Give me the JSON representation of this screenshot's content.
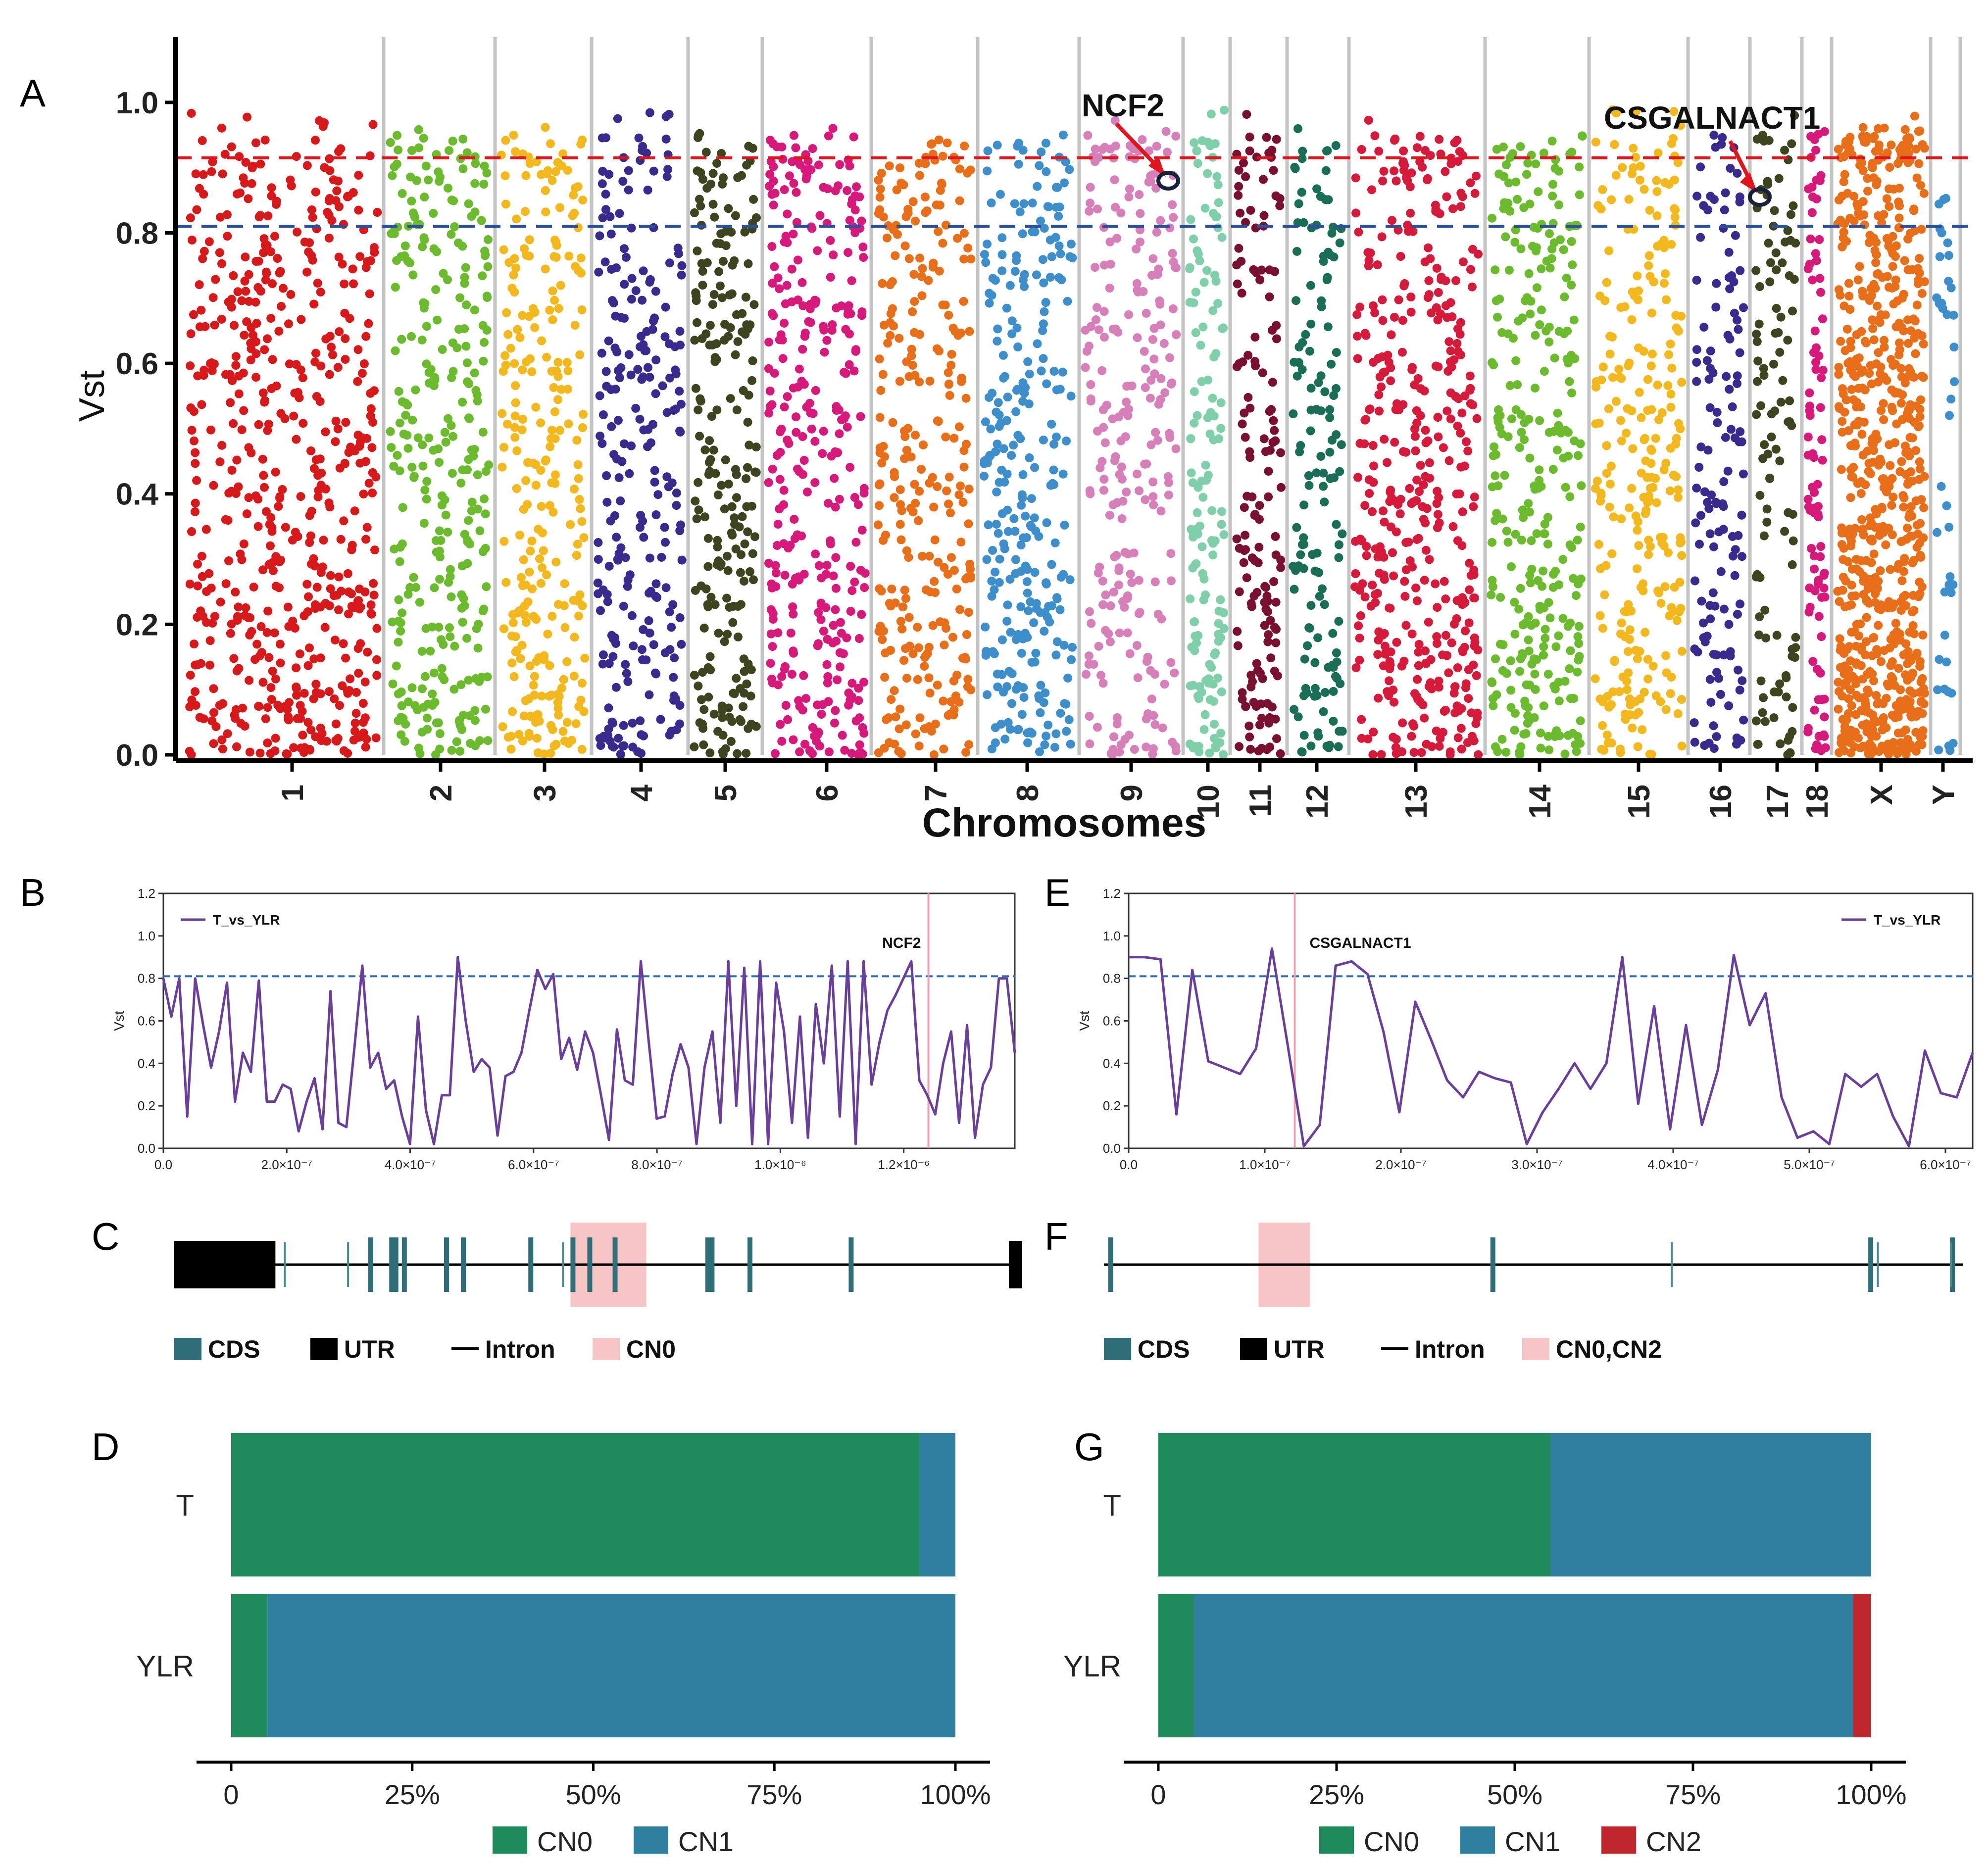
{
  "chart_data": [
    {
      "panel": "A",
      "type": "scatter",
      "title": "",
      "xlabel": "Chromosomes",
      "ylabel": "Vst",
      "ylim": [
        0,
        1.1
      ],
      "yticks": [
        "0.0",
        "0.2",
        "0.4",
        "0.6",
        "0.8",
        "1.0"
      ],
      "threshold_lines": [
        {
          "name": "red-threshold",
          "value": 0.915,
          "color": "#e0141e"
        },
        {
          "name": "blue-threshold",
          "value": 0.81,
          "color": "#2c4f9e"
        }
      ],
      "chromosomes": [
        {
          "label": "1",
          "color": "#d7191c",
          "n": 560
        },
        {
          "label": "2",
          "color": "#6cbb2e",
          "n": 300
        },
        {
          "label": "3",
          "color": "#f2b81d",
          "n": 260
        },
        {
          "label": "4",
          "color": "#3b2a8e",
          "n": 240
        },
        {
          "label": "5",
          "color": "#3f4420",
          "n": 220
        },
        {
          "label": "6",
          "color": "#d6197a",
          "n": 320
        },
        {
          "label": "7",
          "color": "#e86e19",
          "n": 280
        },
        {
          "label": "8",
          "color": "#3d8ecb",
          "n": 280
        },
        {
          "label": "9",
          "color": "#d77fb8",
          "n": 240
        },
        {
          "label": "10",
          "color": "#7fcfaa",
          "n": 140
        },
        {
          "label": "11",
          "color": "#7a1030",
          "n": 150
        },
        {
          "label": "12",
          "color": "#1a6e55",
          "n": 140
        },
        {
          "label": "13",
          "color": "#d61a3c",
          "n": 420
        },
        {
          "label": "14",
          "color": "#6cbb2e",
          "n": 300
        },
        {
          "label": "15",
          "color": "#f2b81d",
          "n": 260
        },
        {
          "label": "16",
          "color": "#3b2a8e",
          "n": 130
        },
        {
          "label": "17",
          "color": "#3f4420",
          "n": 110
        },
        {
          "label": "18",
          "color": "#d6197a",
          "n": 90
        },
        {
          "label": "X",
          "color": "#e86e19",
          "n": 700
        },
        {
          "label": "Y",
          "color": "#3d8ecb",
          "n": 40
        }
      ],
      "annotations": [
        {
          "label": "NCF2",
          "chromosome": "9",
          "vst": 0.88
        },
        {
          "label": "CSGALNACT1",
          "chromosome": "17",
          "vst": 0.855
        }
      ]
    },
    {
      "panel": "B",
      "type": "line",
      "legend": "T_vs_YLR",
      "ylabel": "Vst",
      "xlim": [
        0,
        1.38e-06
      ],
      "ylim": [
        0,
        1.2
      ],
      "yticks": [
        "0.0",
        "0.2",
        "0.4",
        "0.6",
        "0.8",
        "1.0",
        "1.2"
      ],
      "xticks": [
        "0.0",
        "2.0×10⁻⁷",
        "4.0×10⁻⁷",
        "6.0×10⁻⁷",
        "8.0×10⁻⁷",
        "1.0×10⁻⁶",
        "1.2×10⁻⁶"
      ],
      "xtick_values": [
        0,
        2e-07,
        4e-07,
        6e-07,
        8e-07,
        1e-06,
        1.2e-06
      ],
      "threshold": 0.81,
      "marker": {
        "label": "NCF2",
        "x": 1.24e-06
      },
      "y": [
        0.8,
        0.62,
        0.8,
        0.15,
        0.8,
        0.58,
        0.38,
        0.55,
        0.78,
        0.22,
        0.45,
        0.36,
        0.79,
        0.22,
        0.22,
        0.3,
        0.28,
        0.08,
        0.22,
        0.33,
        0.09,
        0.74,
        0.12,
        0.1,
        0.47,
        0.86,
        0.38,
        0.45,
        0.28,
        0.32,
        0.15,
        0.02,
        0.62,
        0.18,
        0.02,
        0.25,
        0.25,
        0.9,
        0.6,
        0.36,
        0.42,
        0.38,
        0.06,
        0.34,
        0.36,
        0.45,
        0.65,
        0.84,
        0.75,
        0.82,
        0.42,
        0.52,
        0.37,
        0.55,
        0.45,
        0.25,
        0.04,
        0.56,
        0.32,
        0.3,
        0.88,
        0.5,
        0.14,
        0.15,
        0.35,
        0.49,
        0.38,
        0.02,
        0.38,
        0.55,
        0.12,
        0.88,
        0.2,
        0.85,
        0.02,
        0.88,
        0.02,
        0.78,
        0.55,
        0.12,
        0.62,
        0.05,
        0.68,
        0.4,
        0.86,
        0.15,
        0.88,
        0.02,
        0.88,
        0.3,
        0.5,
        0.65,
        0.72,
        0.8,
        0.88,
        0.32,
        0.25,
        0.16,
        0.4,
        0.55,
        0.12,
        0.58,
        0.05,
        0.3,
        0.38,
        0.8,
        0.8,
        0.45
      ],
      "xlabel": ""
    },
    {
      "panel": "E",
      "type": "line",
      "legend": "T_vs_YLR",
      "ylabel": "Vst",
      "xlim": [
        0,
        6.2e-07
      ],
      "ylim": [
        0,
        1.2
      ],
      "yticks": [
        "0.0",
        "0.2",
        "0.4",
        "0.6",
        "0.8",
        "1.0",
        "1.2"
      ],
      "xticks": [
        "0.0",
        "1.0×10⁻⁷",
        "2.0×10⁻⁷",
        "3.0×10⁻⁷",
        "4.0×10⁻⁷",
        "5.0×10⁻⁷",
        "6.0×10⁻⁷"
      ],
      "xtick_values": [
        0,
        1e-07,
        2e-07,
        3e-07,
        4e-07,
        5e-07,
        6e-07
      ],
      "threshold": 0.81,
      "marker": {
        "label": "CSGALNACT1",
        "x": 1.22e-07
      },
      "y": [
        0.9,
        0.9,
        0.89,
        0.16,
        0.84,
        0.41,
        0.38,
        0.35,
        0.47,
        0.94,
        0.48,
        0.01,
        0.11,
        0.86,
        0.88,
        0.82,
        0.55,
        0.17,
        0.69,
        0.51,
        0.32,
        0.24,
        0.36,
        0.33,
        0.31,
        0.02,
        0.17,
        0.28,
        0.4,
        0.28,
        0.4,
        0.9,
        0.21,
        0.67,
        0.09,
        0.58,
        0.11,
        0.37,
        0.91,
        0.58,
        0.73,
        0.24,
        0.05,
        0.08,
        0.02,
        0.35,
        0.29,
        0.35,
        0.15,
        0.01,
        0.46,
        0.26,
        0.24,
        0.45
      ],
      "xlabel": ""
    },
    {
      "panel": "C",
      "type": "diagram",
      "legend": [
        "CDS",
        "UTR",
        "Intron",
        "CN0"
      ],
      "exons": [
        0.23,
        0.255,
        0.26,
        0.27,
        0.32,
        0.34,
        0.42,
        0.47,
        0.49,
        0.52,
        0.63,
        0.635,
        0.68,
        0.8
      ],
      "thin_exons": [
        0.13,
        0.205,
        0.46
      ],
      "utr_left": [
        0,
        0.12
      ],
      "utr_right": [
        0.99,
        1.0
      ],
      "cnv_region": [
        0.47,
        0.56
      ]
    },
    {
      "panel": "F",
      "type": "diagram",
      "legend": [
        "CDS",
        "UTR",
        "Intron",
        "CN0,CN2"
      ],
      "exons": [
        0.005,
        0.45,
        0.89,
        0.985
      ],
      "thin_exons": [
        0.66,
        0.9,
        0.985
      ],
      "cnv_region": [
        0.18,
        0.24
      ]
    },
    {
      "panel": "D",
      "type": "bar",
      "orientation": "horizontal-stacked",
      "categories": [
        "T",
        "YLR"
      ],
      "series": [
        {
          "name": "CN0",
          "color": "#1f8a5b",
          "values": [
            95,
            5
          ]
        },
        {
          "name": "CN1",
          "color": "#2e7fa0",
          "values": [
            5,
            95
          ]
        }
      ],
      "xticks": [
        "0",
        "25%",
        "50%",
        "75%",
        "100%"
      ],
      "xlim": [
        0,
        100
      ]
    },
    {
      "panel": "G",
      "type": "bar",
      "orientation": "horizontal-stacked",
      "categories": [
        "T",
        "YLR"
      ],
      "series": [
        {
          "name": "CN0",
          "color": "#1f8a5b",
          "values": [
            55,
            5
          ]
        },
        {
          "name": "CN1",
          "color": "#2e7fa0",
          "values": [
            45,
            92.5
          ]
        },
        {
          "name": "CN2",
          "color": "#c0272d",
          "values": [
            0,
            2.5
          ]
        }
      ],
      "xticks": [
        "0",
        "25%",
        "50%",
        "75%",
        "100%"
      ],
      "xlim": [
        0,
        100
      ]
    }
  ],
  "panel_letters": [
    "A",
    "B",
    "C",
    "D",
    "E",
    "F",
    "G"
  ],
  "colors": {
    "cds": "#2f6e78",
    "utr": "#000000",
    "cnv": "#f7c5c5",
    "line": "#6a3f9a",
    "threshold_blue": "#2c6eb5",
    "marker_pink": "#f0a0b0"
  }
}
